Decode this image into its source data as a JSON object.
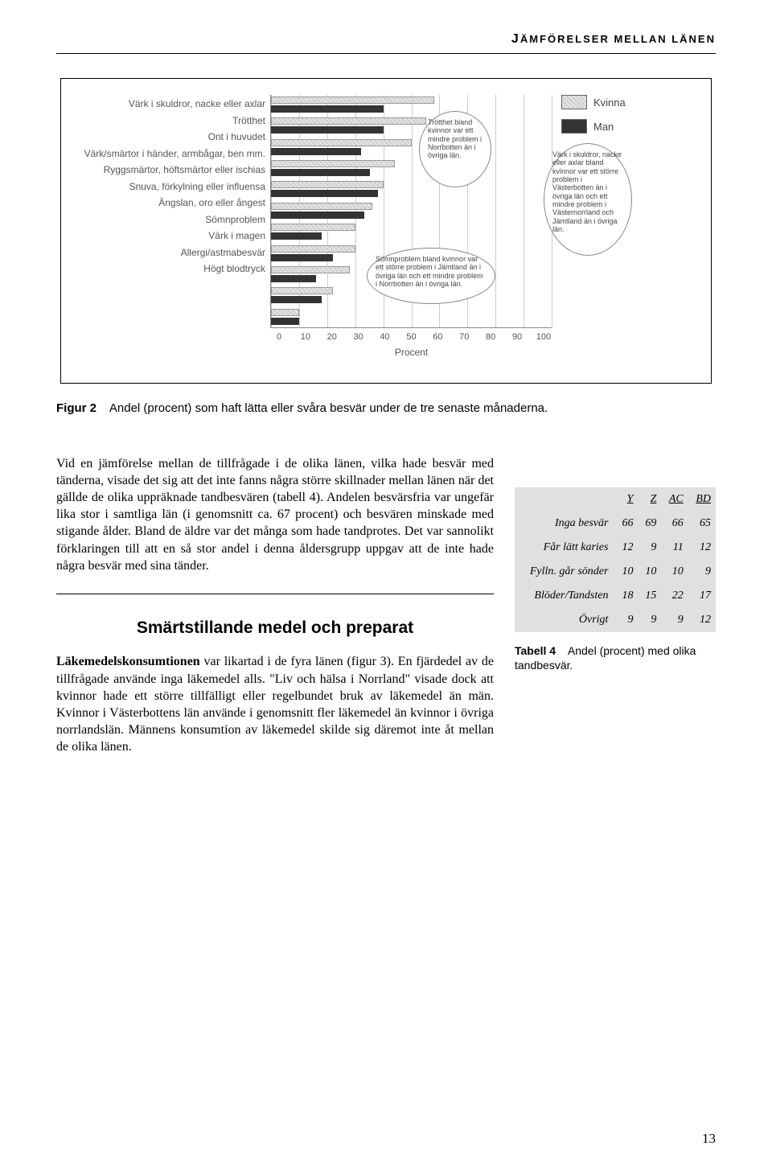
{
  "header": "ÄMFÖRELSER MELLAN LÄNEN",
  "header_first": "J",
  "chart": {
    "type": "bar",
    "categories": [
      "Värk i skuldror, nacke eller axlar",
      "Trötthet",
      "Ont i huvudet",
      "Värk/smärtor i händer, armbågar, ben mm.",
      "Ryggsmärtor, höftsmärtor eller ischias",
      "Snuva, förkylning eller influensa",
      "Ängslan, oro eller ångest",
      "Sömnproblem",
      "Värk i magen",
      "Allergi/astmabesvär",
      "Högt blodtryck"
    ],
    "values_kvinna": [
      58,
      55,
      50,
      44,
      40,
      36,
      30,
      30,
      28,
      22,
      10
    ],
    "values_man": [
      40,
      40,
      32,
      35,
      38,
      33,
      18,
      22,
      16,
      18,
      10
    ],
    "bar_colors": {
      "kvinna": "#d9d9d9",
      "man": "#333333"
    },
    "xlim": [
      0,
      100
    ],
    "xtick_step": 10,
    "xlabel": "Procent",
    "legend": [
      "Kvinna",
      "Man"
    ],
    "grid_color": "#cccccc",
    "callouts": [
      "Trötthet bland kvinnor var ett mindre problem i Norrbotten än i övriga län.",
      "Sömnproblem bland kvinnor var ett större problem i Jämtland än i övriga län och ett mindre problem i Norrbotten än i övriga län.",
      "Värk i skuldror, nacke eller axlar bland kvinnor var ett större problem i Västerbotten än i övriga län och ett mindre problem i Västernorrland och Jämtland än i övriga län."
    ]
  },
  "figure_caption_bold": "Figur 2",
  "figure_caption_text": "Andel (procent) som haft lätta eller svåra besvär under de tre senaste månaderna.",
  "para1": "Vid en jämförelse mellan de tillfrågade i de olika länen, vilka hade besvär med tänderna, visade det sig att det inte fanns några större skillnader mellan länen när det gällde de olika uppräknade tandbesvären (tabell 4). Andelen besvärsfria var ungefär lika stor i samtliga län (i genomsnitt ca. 67 procent) och besvären minskade med stigande ålder. Bland de äldre var det många som hade tandprotes. Det var sannolikt förklaringen till att en så stor andel i denna åldersgrupp uppgav att de inte hade några besvär med sina tänder.",
  "section_heading": "Smärtstillande medel och preparat",
  "para2_bold": "Läkemedelskonsumtionen",
  "para2": " var likartad i de fyra länen (figur 3). En fjärdedel av de tillfrågade använde inga läkemedel alls. \"Liv och hälsa i Norrland\" visade dock att kvinnor hade ett större tillfälligt eller regelbundet bruk av läkemedel än män. Kvinnor i Västerbottens län använde i genomsnitt fler läkemedel än kvinnor i övriga norrlandslän. Männens konsumtion av läkemedel skilde sig däremot inte åt mellan de olika länen.",
  "table": {
    "columns": [
      "Y",
      "Z",
      "AC",
      "BD"
    ],
    "rows": [
      {
        "label": "Inga besvär",
        "vals": [
          66,
          69,
          66,
          65
        ]
      },
      {
        "label": "Får lätt karies",
        "vals": [
          12,
          9,
          11,
          12
        ]
      },
      {
        "label": "Fylln. går sönder",
        "vals": [
          10,
          10,
          10,
          9
        ]
      },
      {
        "label": "Blöder/Tandsten",
        "vals": [
          18,
          15,
          22,
          17
        ]
      },
      {
        "label": "Övrigt",
        "vals": [
          9,
          9,
          9,
          12
        ]
      }
    ],
    "background_color": "#e0e0e0"
  },
  "table_caption_bold": "Tabell 4",
  "table_caption_text": "Andel (procent) med olika tandbesvär.",
  "page_number": "13"
}
